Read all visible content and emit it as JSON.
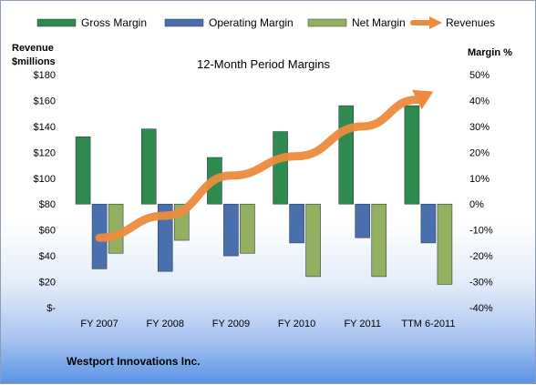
{
  "chart_data": {
    "type": "bar",
    "title": "12-Month Period Margins",
    "company": "Westport Innovations Inc.",
    "categories": [
      "FY 2007",
      "FY 2008",
      "FY 2009",
      "FY 2010",
      "FY 2011",
      "TTM 6-2011"
    ],
    "left_axis": {
      "label_line1": "Revenue",
      "label_line2": "$millions",
      "min": 0,
      "max": 180,
      "step": 20,
      "ticks": [
        "$-",
        "$20",
        "$40",
        "$60",
        "$80",
        "$100",
        "$120",
        "$140",
        "$160",
        "$180"
      ]
    },
    "right_axis": {
      "label": "Margin %",
      "min": -40,
      "max": 50,
      "step": 10,
      "ticks": [
        "-40%",
        "-30%",
        "-20%",
        "-10%",
        "0%",
        "10%",
        "20%",
        "30%",
        "40%",
        "50%"
      ]
    },
    "series": [
      {
        "name": "Gross Margin",
        "axis": "right",
        "color": "#2e8a4d",
        "values": [
          26,
          29,
          18,
          28,
          38,
          38
        ]
      },
      {
        "name": "Operating Margin",
        "axis": "right",
        "color": "#4a6fae",
        "values": [
          -25,
          -26,
          -20,
          -15,
          -13,
          -15
        ]
      },
      {
        "name": "Net Margin",
        "axis": "right",
        "color": "#93b061",
        "values": [
          -19,
          -14,
          -19,
          -28,
          -28,
          -31
        ]
      }
    ],
    "line_series": {
      "name": "Revenues",
      "axis": "left",
      "color": "#ed8b3c",
      "values": [
        54,
        71,
        102,
        117,
        140,
        165
      ]
    },
    "legend_position": "top",
    "grid": false
  }
}
